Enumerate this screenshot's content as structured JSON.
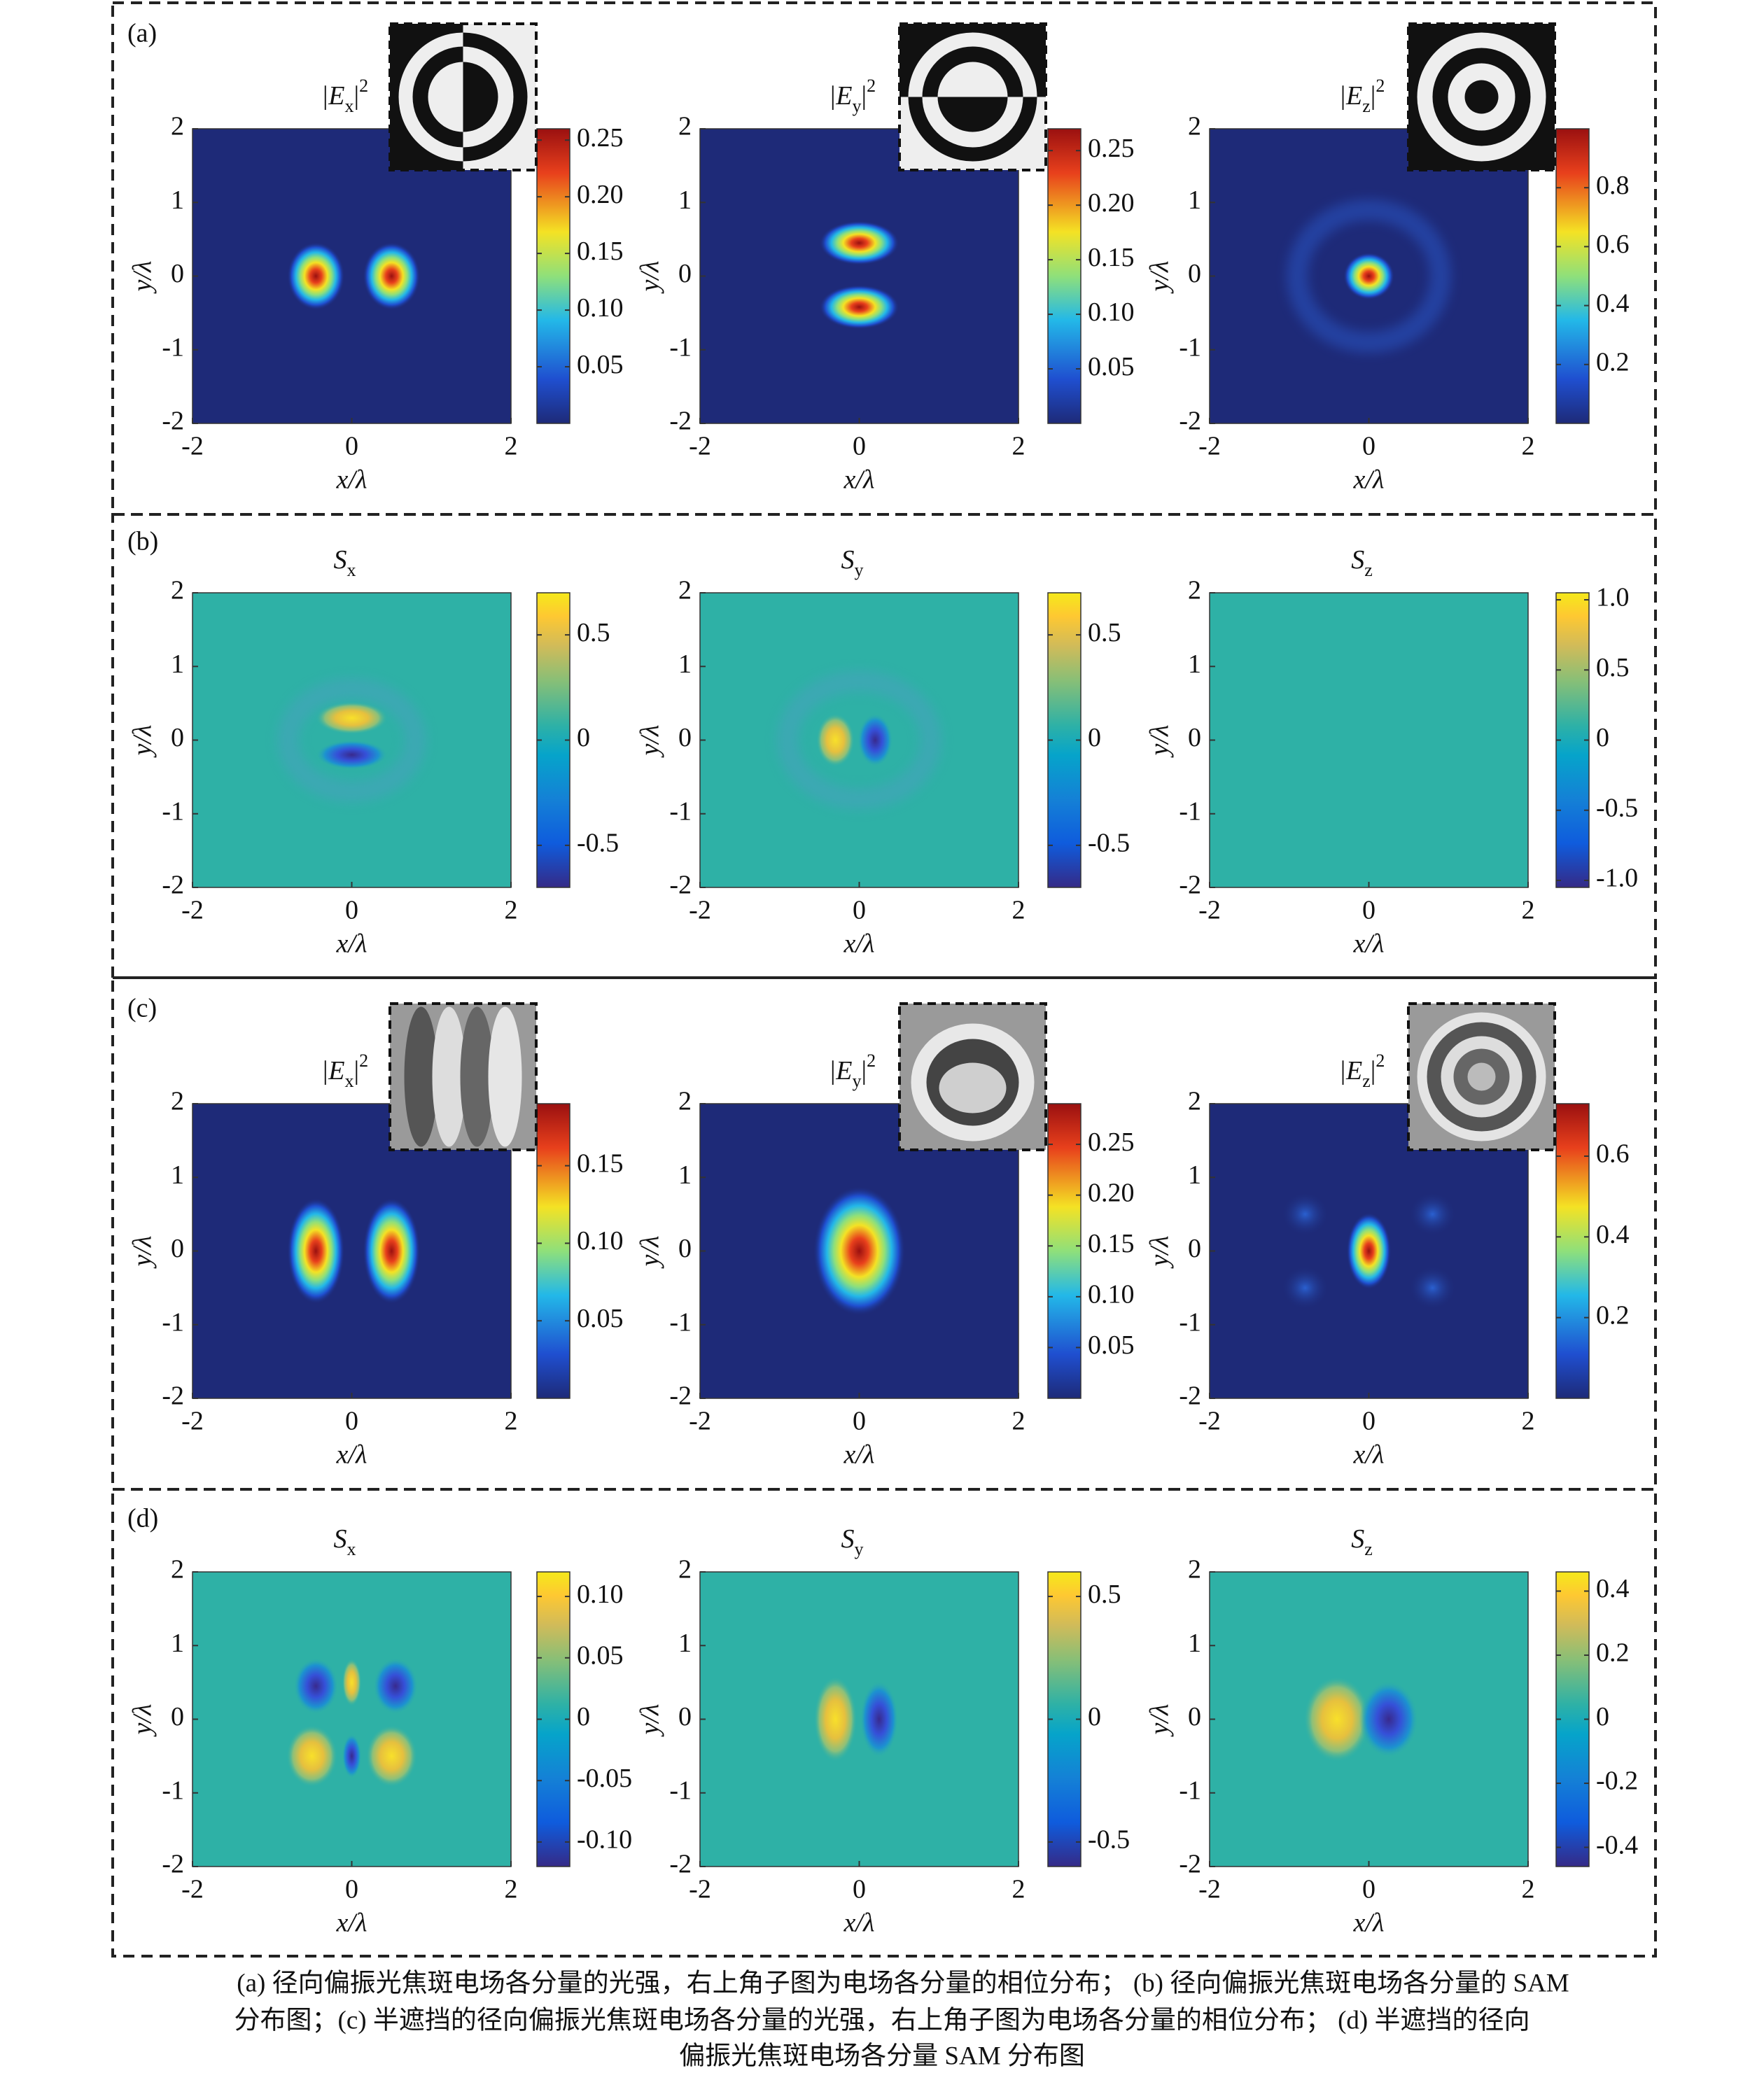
{
  "panel_labels": [
    "(a)",
    "(b)",
    "(c)",
    "(d)"
  ],
  "chart_data": [
    {
      "type": "heatmap",
      "title": [
        "|E",
        "x",
        "|",
        "2"
      ],
      "xlabel": "x/λ",
      "ylabel": "y/λ",
      "xlim": [
        -2,
        2
      ],
      "ylim": [
        -2,
        2
      ],
      "xticks": [
        -2,
        0,
        2
      ],
      "yticks": [
        -2,
        -1,
        0,
        1,
        2
      ],
      "colormap": "jet",
      "clim": [
        0,
        0.26
      ],
      "cticks": [
        0.05,
        {
          "value": 0.1,
          "label": "0.10"
        },
        0.15,
        {
          "value": 0.2,
          "label": "0.20"
        },
        0.25
      ],
      "phase_inset": true
    },
    {
      "type": "heatmap",
      "title": [
        "|E",
        "y",
        "|",
        "2"
      ],
      "xlabel": "x/λ",
      "ylabel": "y/λ",
      "xlim": [
        -2,
        2
      ],
      "ylim": [
        -2,
        2
      ],
      "xticks": [
        -2,
        0,
        2
      ],
      "yticks": [
        -2,
        -1,
        0,
        1,
        2
      ],
      "colormap": "jet",
      "clim": [
        0,
        0.27
      ],
      "cticks": [
        0.05,
        {
          "value": 0.1,
          "label": "0.10"
        },
        0.15,
        {
          "value": 0.2,
          "label": "0.20"
        },
        0.25
      ],
      "phase_inset": true
    },
    {
      "type": "heatmap",
      "title": [
        "|E",
        "z",
        "|",
        "2"
      ],
      "xlabel": "x/λ",
      "ylabel": "y/λ",
      "xlim": [
        -2,
        2
      ],
      "ylim": [
        -2,
        2
      ],
      "xticks": [
        -2,
        0,
        2
      ],
      "yticks": [
        -2,
        -1,
        0,
        1,
        2
      ],
      "colormap": "jet",
      "clim": [
        0,
        1
      ],
      "cticks": [
        0.2,
        0.4,
        0.6,
        0.8
      ],
      "phase_inset": true
    },
    {
      "type": "heatmap",
      "title": [
        "S",
        "x"
      ],
      "xlabel": "x/λ",
      "ylabel": "y/λ",
      "xlim": [
        -2,
        2
      ],
      "ylim": [
        -2,
        2
      ],
      "xticks": [
        -2,
        0,
        2
      ],
      "yticks": [
        -2,
        -1,
        0,
        1,
        2
      ],
      "colormap": "parula",
      "clim": [
        -0.7,
        0.7
      ],
      "cticks": [
        -0.5,
        0,
        0.5
      ],
      "phase_inset": false
    },
    {
      "type": "heatmap",
      "title": [
        "S",
        "y"
      ],
      "xlabel": "x/λ",
      "ylabel": "y/λ",
      "xlim": [
        -2,
        2
      ],
      "ylim": [
        -2,
        2
      ],
      "xticks": [
        -2,
        0,
        2
      ],
      "yticks": [
        -2,
        -1,
        0,
        1,
        2
      ],
      "colormap": "parula",
      "clim": [
        -0.7,
        0.7
      ],
      "cticks": [
        -0.5,
        0,
        0.5
      ],
      "phase_inset": false
    },
    {
      "type": "heatmap",
      "title": [
        "S",
        "z"
      ],
      "xlabel": "x/λ",
      "ylabel": "y/λ",
      "xlim": [
        -2,
        2
      ],
      "ylim": [
        -2,
        2
      ],
      "xticks": [
        -2,
        0,
        2
      ],
      "yticks": [
        -2,
        -1,
        0,
        1,
        2
      ],
      "colormap": "parula",
      "clim": [
        -1.05,
        1.05
      ],
      "cticks": [
        {
          "value": -1,
          "label": "-1.0"
        },
        -0.5,
        0,
        0.5,
        {
          "value": 1,
          "label": "1.0"
        }
      ],
      "phase_inset": false
    },
    {
      "type": "heatmap",
      "title": [
        "|E",
        "x",
        "|",
        "2"
      ],
      "xlabel": "x/λ",
      "ylabel": "y/λ",
      "xlim": [
        -2,
        2
      ],
      "ylim": [
        -2,
        2
      ],
      "xticks": [
        -2,
        0,
        2
      ],
      "yticks": [
        -2,
        -1,
        0,
        1,
        2
      ],
      "colormap": "jet",
      "clim": [
        0,
        0.19
      ],
      "cticks": [
        0.05,
        {
          "value": 0.1,
          "label": "0.10"
        },
        0.15
      ],
      "phase_inset": true
    },
    {
      "type": "heatmap",
      "title": [
        "|E",
        "y",
        "|",
        "2"
      ],
      "xlabel": "x/λ",
      "ylabel": "y/λ",
      "xlim": [
        -2,
        2
      ],
      "ylim": [
        -2,
        2
      ],
      "xticks": [
        -2,
        0,
        2
      ],
      "yticks": [
        -2,
        -1,
        0,
        1,
        2
      ],
      "colormap": "jet",
      "clim": [
        0,
        0.29
      ],
      "cticks": [
        0.05,
        {
          "value": 0.1,
          "label": "0.10"
        },
        0.15,
        {
          "value": 0.2,
          "label": "0.20"
        },
        0.25
      ],
      "phase_inset": true
    },
    {
      "type": "heatmap",
      "title": [
        "|E",
        "z",
        "|",
        "2"
      ],
      "xlabel": "x/λ",
      "ylabel": "y/λ",
      "xlim": [
        -2,
        2
      ],
      "ylim": [
        -2,
        2
      ],
      "xticks": [
        -2,
        0,
        2
      ],
      "yticks": [
        -2,
        -1,
        0,
        1,
        2
      ],
      "colormap": "jet",
      "clim": [
        0,
        0.73
      ],
      "cticks": [
        0.2,
        0.4,
        0.6
      ],
      "phase_inset": true
    },
    {
      "type": "heatmap",
      "title": [
        "S",
        "x"
      ],
      "xlabel": "x/λ",
      "ylabel": "y/λ",
      "xlim": [
        -2,
        2
      ],
      "ylim": [
        -2,
        2
      ],
      "xticks": [
        -2,
        0,
        2
      ],
      "yticks": [
        -2,
        -1,
        0,
        1,
        2
      ],
      "colormap": "parula",
      "clim": [
        -0.12,
        0.12
      ],
      "cticks": [
        {
          "value": -0.1,
          "label": "-0.10"
        },
        -0.05,
        0,
        0.05,
        {
          "value": 0.1,
          "label": "0.10"
        }
      ],
      "phase_inset": false
    },
    {
      "type": "heatmap",
      "title": [
        "S",
        "y"
      ],
      "xlabel": "x/λ",
      "ylabel": "y/λ",
      "xlim": [
        -2,
        2
      ],
      "ylim": [
        -2,
        2
      ],
      "xticks": [
        -2,
        0,
        2
      ],
      "yticks": [
        -2,
        -1,
        0,
        1,
        2
      ],
      "colormap": "parula",
      "clim": [
        -0.6,
        0.6
      ],
      "cticks": [
        -0.5,
        0,
        0.5
      ],
      "phase_inset": false
    },
    {
      "type": "heatmap",
      "title": [
        "S",
        "z"
      ],
      "xlabel": "x/λ",
      "ylabel": "y/λ",
      "xlim": [
        -2,
        2
      ],
      "ylim": [
        -2,
        2
      ],
      "xticks": [
        -2,
        0,
        2
      ],
      "yticks": [
        -2,
        -1,
        0,
        1,
        2
      ],
      "colormap": "parula",
      "clim": [
        -0.46,
        0.46
      ],
      "cticks": [
        -0.4,
        -0.2,
        0,
        0.2,
        0.4
      ],
      "phase_inset": false
    }
  ],
  "caption": [
    "(a) 径向偏振光焦斑电场各分量的光强，右上角子图为电场各分量的相位分布； (b) 径向偏振光焦斑电场各分量的 SAM",
    "分布图；(c) 半遮挡的径向偏振光焦斑电场各分量的光强，右上角子图为电场各分量的相位分布； (d) 半遮挡的径向",
    "偏振光焦斑电场各分量 SAM 分布图"
  ]
}
